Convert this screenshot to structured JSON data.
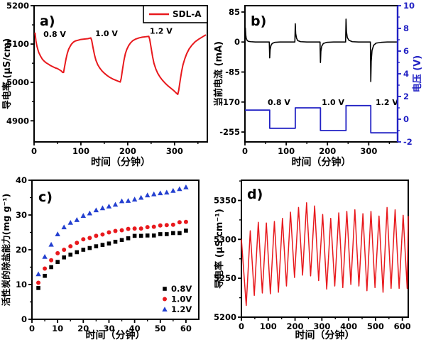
{
  "figure": {
    "background": "#ffffff"
  },
  "colors": {
    "red": "#e8191d",
    "blue_line": "#2222c4",
    "blue_marker": "#2440d0",
    "black": "#000000"
  },
  "chart_data": [
    {
      "id": "a",
      "type": "line",
      "panel_label": "a)",
      "xlabel": "时间（分钟）",
      "ylabel": "导电率 (μS/cm)",
      "xlim": [
        0,
        370
      ],
      "xticks": [
        0,
        100,
        200,
        300
      ],
      "ylim": [
        4845,
        5200
      ],
      "yticks": [
        4900,
        5000,
        5100,
        5200
      ],
      "annotations": [
        {
          "text": "0.8 V",
          "fx": 0.119,
          "fy": 0.229
        },
        {
          "text": "1.0 V",
          "fx": 0.418,
          "fy": 0.224
        },
        {
          "text": "1.2 V",
          "fx": 0.733,
          "fy": 0.205
        }
      ],
      "legend": {
        "style": "boxed",
        "items": [
          {
            "swatch": "line",
            "color": "red",
            "label": "SDL-A"
          }
        ]
      },
      "series": [
        {
          "name": "SDL-A",
          "color": "red",
          "points": [
            [
              2,
              5130
            ],
            [
              4,
              5108
            ],
            [
              6,
              5095
            ],
            [
              8,
              5086
            ],
            [
              10,
              5078
            ],
            [
              14,
              5068
            ],
            [
              18,
              5060
            ],
            [
              22,
              5055
            ],
            [
              26,
              5051
            ],
            [
              30,
              5048
            ],
            [
              35,
              5044
            ],
            [
              40,
              5041
            ],
            [
              45,
              5038
            ],
            [
              50,
              5036
            ],
            [
              54,
              5033
            ],
            [
              58,
              5030
            ],
            [
              61,
              5026
            ],
            [
              63,
              5026
            ],
            [
              65,
              5040
            ],
            [
              68,
              5060
            ],
            [
              71,
              5076
            ],
            [
              74,
              5087
            ],
            [
              77,
              5094
            ],
            [
              80,
              5100
            ],
            [
              84,
              5105
            ],
            [
              88,
              5108
            ],
            [
              94,
              5110
            ],
            [
              100,
              5112
            ],
            [
              108,
              5113
            ],
            [
              115,
              5114
            ],
            [
              121,
              5116
            ],
            [
              123,
              5110
            ],
            [
              126,
              5090
            ],
            [
              129,
              5072
            ],
            [
              132,
              5058
            ],
            [
              136,
              5046
            ],
            [
              140,
              5038
            ],
            [
              145,
              5030
            ],
            [
              150,
              5024
            ],
            [
              156,
              5018
            ],
            [
              162,
              5013
            ],
            [
              168,
              5009
            ],
            [
              174,
              5006
            ],
            [
              180,
              5003
            ],
            [
              184,
              5001
            ],
            [
              186,
              5010
            ],
            [
              189,
              5035
            ],
            [
              192,
              5058
            ],
            [
              195,
              5075
            ],
            [
              198,
              5086
            ],
            [
              202,
              5096
            ],
            [
              206,
              5103
            ],
            [
              211,
              5109
            ],
            [
              217,
              5113
            ],
            [
              224,
              5116
            ],
            [
              231,
              5118
            ],
            [
              238,
              5119
            ],
            [
              245,
              5120
            ],
            [
              247,
              5112
            ],
            [
              250,
              5090
            ],
            [
              253,
              5068
            ],
            [
              256,
              5050
            ],
            [
              260,
              5035
            ],
            [
              264,
              5024
            ],
            [
              269,
              5014
            ],
            [
              274,
              5006
            ],
            [
              280,
              4998
            ],
            [
              286,
              4991
            ],
            [
              292,
              4985
            ],
            [
              298,
              4979
            ],
            [
              304,
              4972
            ],
            [
              307,
              4969
            ],
            [
              309,
              4980
            ],
            [
              312,
              5005
            ],
            [
              315,
              5028
            ],
            [
              318,
              5046
            ],
            [
              322,
              5062
            ],
            [
              326,
              5075
            ],
            [
              331,
              5087
            ],
            [
              337,
              5097
            ],
            [
              344,
              5106
            ],
            [
              352,
              5113
            ],
            [
              360,
              5119
            ],
            [
              367,
              5124
            ]
          ]
        }
      ]
    },
    {
      "id": "b",
      "type": "line-dual",
      "panel_label": "b)",
      "xlabel": "时间（分钟）",
      "ylabel_left": "当前电流 (mA)",
      "ylabel_right": "电压 (V)",
      "xlim": [
        0,
        370
      ],
      "xticks": [
        0,
        100,
        200,
        300
      ],
      "ylim_left": [
        -283,
        103
      ],
      "yticks_left": [
        85,
        0,
        -85,
        -170,
        -255
      ],
      "ylim_right": [
        -2,
        10
      ],
      "yticks_right": [
        10,
        8,
        6,
        4,
        2,
        0,
        -2
      ],
      "annotations": [
        {
          "text": "0.8 V",
          "fx": 0.223,
          "fy": 0.729
        },
        {
          "text": "1.0 V",
          "fx": 0.577,
          "fy": 0.729
        },
        {
          "text": "1.2 V",
          "fx": 0.93,
          "fy": 0.729
        }
      ],
      "series": [
        {
          "name": "当前电流",
          "axis": "left",
          "color": "black",
          "points": [
            [
              0,
              0
            ],
            [
              1,
              40
            ],
            [
              2,
              20
            ],
            [
              3,
              11
            ],
            [
              5,
              5
            ],
            [
              8,
              2
            ],
            [
              14,
              1
            ],
            [
              25,
              0
            ],
            [
              59,
              0
            ],
            [
              60,
              -45
            ],
            [
              61,
              -22
            ],
            [
              63,
              -10
            ],
            [
              66,
              -4
            ],
            [
              72,
              -1
            ],
            [
              85,
              0
            ],
            [
              121,
              0
            ],
            [
              122,
              52
            ],
            [
              123,
              24
            ],
            [
              125,
              11
            ],
            [
              128,
              4
            ],
            [
              135,
              1
            ],
            [
              150,
              0
            ],
            [
              182,
              0
            ],
            [
              183,
              -58
            ],
            [
              184,
              -27
            ],
            [
              186,
              -12
            ],
            [
              190,
              -4
            ],
            [
              198,
              -1
            ],
            [
              215,
              0
            ],
            [
              244,
              0
            ],
            [
              245,
              65
            ],
            [
              246,
              30
            ],
            [
              248,
              13
            ],
            [
              252,
              5
            ],
            [
              260,
              1
            ],
            [
              275,
              0
            ],
            [
              304,
              0
            ],
            [
              305,
              -112
            ],
            [
              306,
              -55
            ],
            [
              308,
              -24
            ],
            [
              312,
              -9
            ],
            [
              318,
              -3
            ],
            [
              330,
              -1
            ],
            [
              345,
              0
            ],
            [
              368,
              0
            ]
          ]
        },
        {
          "name": "电压",
          "axis": "right",
          "color": "blue_line",
          "points": [
            [
              0,
              0.8
            ],
            [
              60,
              0.8
            ],
            [
              60,
              -0.8
            ],
            [
              122,
              -0.8
            ],
            [
              122,
              1.0
            ],
            [
              183,
              1.0
            ],
            [
              183,
              -1.0
            ],
            [
              245,
              -1.0
            ],
            [
              245,
              1.2
            ],
            [
              305,
              1.2
            ],
            [
              305,
              -1.2
            ],
            [
              368,
              -1.2
            ]
          ]
        }
      ]
    },
    {
      "id": "c",
      "type": "scatter",
      "panel_label": "c)",
      "xlabel": "时间（分钟）",
      "ylabel": "活性炭的除盐能力(mg g⁻¹)",
      "xlim": [
        0,
        65
      ],
      "xticks": [
        0,
        10,
        20,
        30,
        40,
        50,
        60
      ],
      "ylim": [
        0,
        40
      ],
      "yticks": [
        0,
        10,
        20,
        30,
        40
      ],
      "x": [
        2.5,
        5,
        7.5,
        10,
        12.5,
        15,
        17.5,
        20,
        22.5,
        25,
        27.5,
        30,
        32.5,
        35,
        37.5,
        40,
        42.5,
        45,
        47.5,
        50,
        52.5,
        55,
        57.5,
        60
      ],
      "series": [
        {
          "name": "0.8V",
          "marker": "square",
          "color": "black",
          "values": [
            9,
            12.5,
            15,
            16.5,
            17.8,
            18.6,
            19.3,
            20,
            20.5,
            21,
            21.4,
            21.8,
            22.3,
            22.8,
            23.3,
            24,
            24,
            24.1,
            24.1,
            24.5,
            24.5,
            24.8,
            24.8,
            25.5
          ]
        },
        {
          "name": "1.0V",
          "marker": "circle",
          "color": "red",
          "values": [
            10.5,
            14.6,
            17,
            19,
            20,
            21,
            22,
            23,
            23.4,
            24,
            24.4,
            25,
            25.4,
            25.6,
            26,
            26.1,
            26.1,
            26.5,
            26.6,
            27,
            27.1,
            27.2,
            27.9,
            28
          ]
        },
        {
          "name": "1.2V",
          "marker": "triangle",
          "color": "blue_marker",
          "values": [
            13,
            18,
            21.5,
            24.5,
            26.5,
            27.8,
            28.6,
            29.8,
            30.5,
            31.4,
            32,
            32.5,
            33,
            34,
            34.1,
            34.5,
            35,
            35.7,
            36,
            36.3,
            36.5,
            37,
            37.5,
            38
          ]
        }
      ],
      "legend": {
        "style": "plain",
        "items": [
          {
            "swatch": "square",
            "color": "black",
            "label": "0.8V"
          },
          {
            "swatch": "circle",
            "color": "red",
            "label": "1.0V"
          },
          {
            "swatch": "triangle",
            "color": "blue_marker",
            "label": "1.2V"
          }
        ]
      }
    },
    {
      "id": "d",
      "type": "line",
      "panel_label": "d)",
      "xlabel": "时间（分钟）",
      "ylabel": "导电率 (μS cm⁻¹)",
      "xlim": [
        0,
        622
      ],
      "xticks": [
        0,
        100,
        200,
        300,
        400,
        500,
        600
      ],
      "ylim": [
        5200,
        5376
      ],
      "yticks": [
        5200,
        5250,
        5300,
        5350
      ],
      "waveform": {
        "color": "red",
        "start": [
          0,
          5300
        ],
        "trough_x0": 18,
        "peak_x0": 33,
        "period": 30,
        "troughs": [
          5215,
          5228,
          5231,
          5230,
          5232,
          5240,
          5251,
          5254,
          5253,
          5247,
          5236,
          5240,
          5238,
          5242,
          5240,
          5234,
          5238,
          5232,
          5237,
          5237
        ],
        "peaks": [
          5311,
          5322,
          5321,
          5323,
          5327,
          5335,
          5341,
          5347,
          5343,
          5332,
          5327,
          5334,
          5336,
          5338,
          5333,
          5336,
          5330,
          5341,
          5338,
          5331
        ],
        "tail": [
          [
            618,
            5237
          ],
          [
            622,
            5330
          ]
        ]
      }
    }
  ]
}
